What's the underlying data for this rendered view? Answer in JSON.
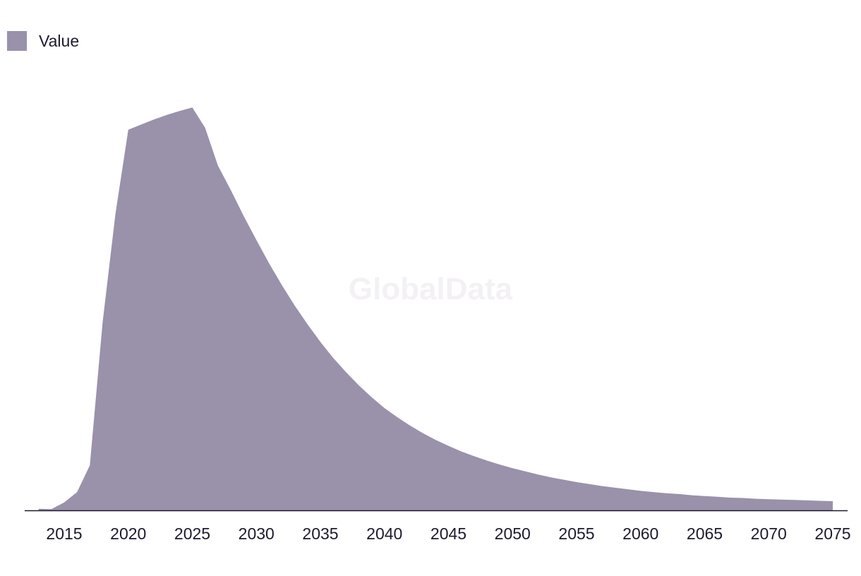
{
  "watermark": "GlobalData",
  "colors": {
    "area": "#9a91aa",
    "axis": "#1d1a2e",
    "text": "#1d1a2e",
    "watermark": "#f3f1f4"
  },
  "chart_data": {
    "type": "area",
    "legend": {
      "position": "top-left",
      "entries": [
        "Value"
      ]
    },
    "grid": false,
    "xlim": [
      2011.5,
      2076
    ],
    "ylim": [
      0,
      100
    ],
    "x_ticks": [
      "2015",
      "2020",
      "2025",
      "2030",
      "2035",
      "2040",
      "2045",
      "2050",
      "2055",
      "2060",
      "2065",
      "2070",
      "2075"
    ],
    "series": [
      {
        "name": "Value",
        "x": [
          2013,
          2014,
          2015,
          2016,
          2017,
          2018,
          2019,
          2020,
          2021,
          2022,
          2023,
          2024,
          2025,
          2026,
          2027,
          2028,
          2029,
          2030,
          2031,
          2032,
          2033,
          2034,
          2035,
          2036,
          2037,
          2038,
          2039,
          2040,
          2041,
          2042,
          2043,
          2044,
          2045,
          2046,
          2047,
          2048,
          2049,
          2050,
          2051,
          2052,
          2053,
          2054,
          2055,
          2056,
          2057,
          2058,
          2059,
          2060,
          2061,
          2062,
          2063,
          2064,
          2065,
          2066,
          2067,
          2068,
          2069,
          2070,
          2071,
          2072,
          2073,
          2074,
          2075
        ],
        "values": [
          0.4,
          0.3,
          2.0,
          4.6,
          11.3,
          47.2,
          74.5,
          95.6,
          96.9,
          98.2,
          99.3,
          100.3,
          101.2,
          96.1,
          86.6,
          80.5,
          74.0,
          67.9,
          62.0,
          56.5,
          51.4,
          46.7,
          42.3,
          38.3,
          34.7,
          31.4,
          28.4,
          25.7,
          23.4,
          21.3,
          19.4,
          17.7,
          16.2,
          14.8,
          13.6,
          12.5,
          11.5,
          10.6,
          9.8,
          9.0,
          8.3,
          7.7,
          7.1,
          6.6,
          6.1,
          5.7,
          5.3,
          4.9,
          4.6,
          4.3,
          4.1,
          3.8,
          3.6,
          3.4,
          3.2,
          3.1,
          2.9,
          2.8,
          2.7,
          2.6,
          2.5,
          2.4,
          2.3
        ]
      }
    ]
  }
}
